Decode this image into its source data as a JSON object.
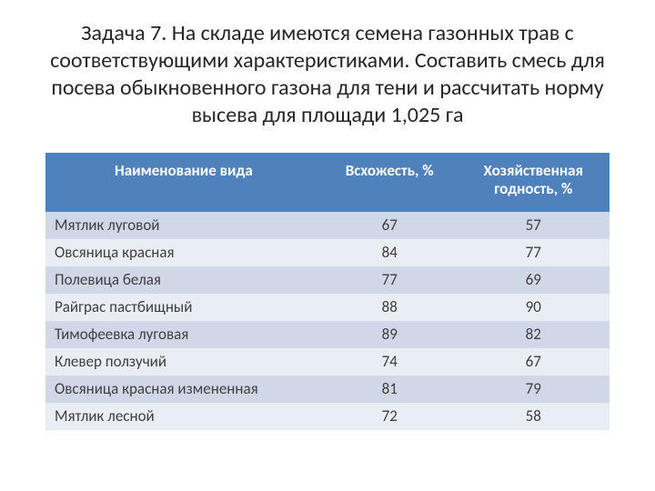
{
  "title": "Задача 7. На складе имеются семена газонных трав с соответствующими характеристиками. Составить смесь для посева обыкновенного газона для тени и рассчитать норму высева для площади 1,025 га",
  "table": {
    "columns": [
      "Наименование вида",
      "Всхожесть, %",
      "Хозяйственная годность, %"
    ],
    "rows": [
      {
        "name": "Мятлик луговой",
        "germination": 67,
        "quality": 57
      },
      {
        "name": "Овсяница красная",
        "germination": 84,
        "quality": 77
      },
      {
        "name": "Полевица  белая",
        "germination": 77,
        "quality": 69
      },
      {
        "name": "Райграс пастбищный",
        "germination": 88,
        "quality": 90
      },
      {
        "name": "Тимофеевка луговая",
        "germination": 89,
        "quality": 82
      },
      {
        "name": "Клевер ползучий",
        "germination": 74,
        "quality": 67
      },
      {
        "name": "Овсяница красная измененная",
        "germination": 81,
        "quality": 79
      },
      {
        "name": "Мятлик лесной",
        "germination": 72,
        "quality": 58
      }
    ]
  },
  "style": {
    "header_bg": "#4f81bd",
    "header_text": "#ffffff",
    "band_light": "#d0d8e8",
    "band_alt": "#e9edf4",
    "title_color": "#262626",
    "cell_text": "#404040",
    "title_fontsize": 24,
    "header_fontsize": 17,
    "cell_fontsize": 17
  }
}
